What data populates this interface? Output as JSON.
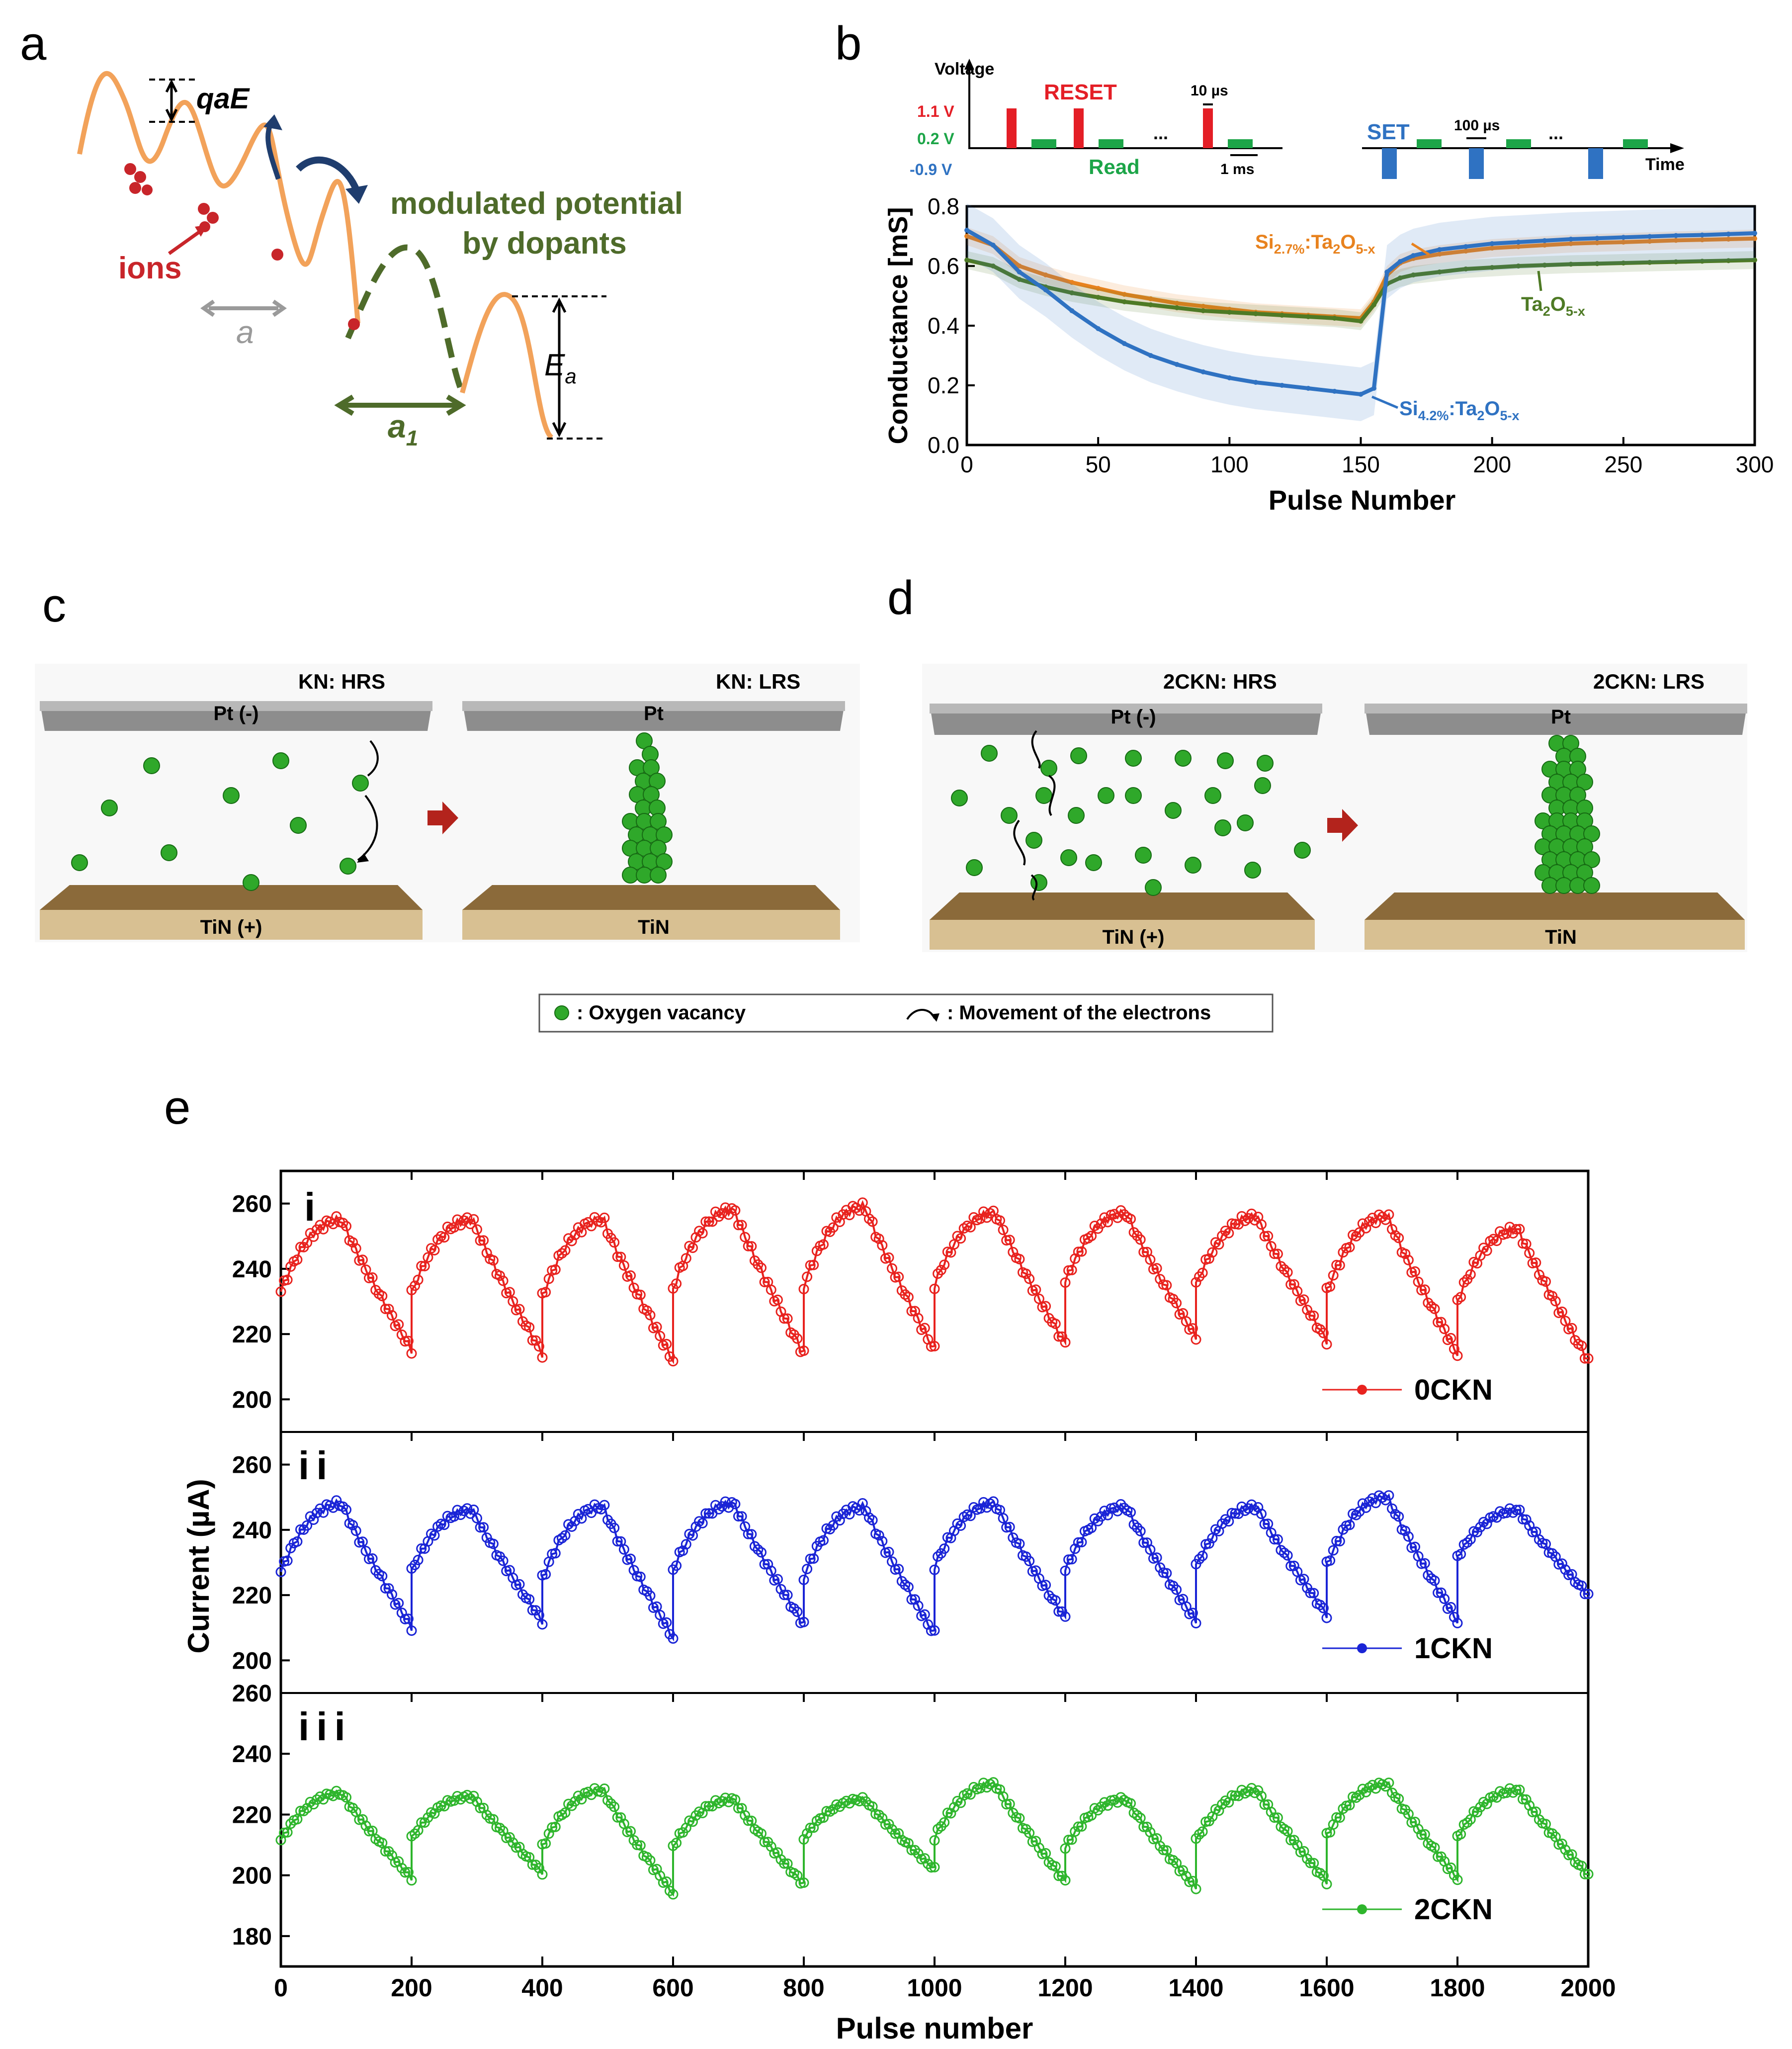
{
  "panel_letters": {
    "a": "a",
    "b": "b",
    "c": "c",
    "d": "d",
    "e": "e"
  },
  "panel_a": {
    "labels": {
      "energy_top": "qaE",
      "ions": "ions",
      "spacing": "a",
      "spacing_dopant": "a",
      "spacing_dopant_sub": "1",
      "barrier": "E",
      "barrier_sub": "a",
      "modulated_line1": "modulated potential",
      "modulated_line2": "by dopants"
    },
    "colors": {
      "potential": "#f2a25a",
      "dopant": "#4e6b2a",
      "ion": "#c8252a",
      "arrow": "#1f3d6e"
    }
  },
  "panel_b": {
    "pulse_scheme": {
      "voltage_label": "Voltage",
      "time_label": "Time",
      "levels": [
        "1.1 V",
        "0.2 V",
        "-0.9 V"
      ],
      "reset_label": "RESET",
      "read_label": "Read",
      "set_label": "SET",
      "reset_width": "10 µs",
      "interval": "1 ms",
      "set_width": "100 µs",
      "ellipsis": "..."
    },
    "legend": [
      {
        "main": "Si",
        "sub": "2.7%",
        "rest": ":Ta",
        "sub2": "2",
        "rest2": "O",
        "sub3": "5-x",
        "color": "#e8821e"
      },
      {
        "main": "Ta",
        "sub": "2",
        "rest": "O",
        "sub2": "5-x",
        "rest2": "",
        "sub3": "",
        "color": "#4e7a25"
      },
      {
        "main": "Si",
        "sub": "4.2%",
        "rest": ":Ta",
        "sub2": "2",
        "rest2": "O",
        "sub3": "5-x",
        "color": "#2f72c2"
      }
    ]
  },
  "panel_c": {
    "hrs_title": "KN: HRS",
    "lrs_title": "KN: LRS",
    "top_electrode_hrs": "Pt (-)",
    "bottom_electrode_hrs": "TiN (+)",
    "top_electrode_lrs": "Pt",
    "bottom_electrode_lrs": "TiN"
  },
  "panel_d": {
    "hrs_title": "2CKN: HRS",
    "lrs_title": "2CKN: LRS",
    "top_electrode_hrs": "Pt (-)",
    "bottom_electrode_hrs": "TiN (+)",
    "top_electrode_lrs": "Pt",
    "bottom_electrode_lrs": "TiN"
  },
  "legend_cd": {
    "vacancy": ": Oxygen vacancy",
    "electron": ": Movement of the electrons"
  },
  "colors": {
    "vacancy": "#2fa82a",
    "electrode_top": "#8d8d8d",
    "electrode_bottom": "#b89a6a",
    "arrow_red": "#b3231c"
  },
  "chart_data": [
    {
      "type": "line",
      "panel": "b",
      "xlabel": "Pulse Number",
      "ylabel": "Conductance [mS]",
      "xlim": [
        0,
        300
      ],
      "ylim": [
        0,
        0.8
      ],
      "xticks": [
        0,
        50,
        100,
        150,
        200,
        250,
        300
      ],
      "yticks": [
        "0.0",
        "0.2",
        "0.4",
        "0.6",
        "0.8"
      ],
      "x": [
        0,
        10,
        20,
        30,
        40,
        50,
        60,
        70,
        80,
        90,
        100,
        110,
        120,
        130,
        140,
        150,
        155,
        160,
        165,
        170,
        180,
        190,
        200,
        210,
        220,
        230,
        240,
        250,
        260,
        270,
        280,
        290,
        300
      ],
      "series": [
        {
          "name": "Si2.7%:Ta2O5-x",
          "color": "#e8821e",
          "values": [
            0.7,
            0.67,
            0.6,
            0.57,
            0.545,
            0.525,
            0.505,
            0.49,
            0.475,
            0.465,
            0.455,
            0.445,
            0.44,
            0.435,
            0.43,
            0.425,
            0.48,
            0.57,
            0.61,
            0.625,
            0.64,
            0.65,
            0.66,
            0.665,
            0.67,
            0.675,
            0.678,
            0.68,
            0.683,
            0.686,
            0.688,
            0.69,
            0.692
          ]
        },
        {
          "name": "Ta2O5-x",
          "color": "#4e7a25",
          "values": [
            0.62,
            0.6,
            0.555,
            0.53,
            0.51,
            0.495,
            0.48,
            0.47,
            0.46,
            0.45,
            0.445,
            0.44,
            0.435,
            0.43,
            0.425,
            0.415,
            0.47,
            0.54,
            0.56,
            0.57,
            0.58,
            0.59,
            0.595,
            0.6,
            0.603,
            0.606,
            0.608,
            0.61,
            0.612,
            0.614,
            0.616,
            0.618,
            0.62
          ]
        },
        {
          "name": "Si4.2%:Ta2O5-x",
          "color": "#2f72c2",
          "values": [
            0.72,
            0.67,
            0.58,
            0.52,
            0.45,
            0.39,
            0.34,
            0.3,
            0.27,
            0.245,
            0.225,
            0.21,
            0.2,
            0.19,
            0.18,
            0.17,
            0.19,
            0.58,
            0.615,
            0.635,
            0.655,
            0.665,
            0.675,
            0.68,
            0.685,
            0.69,
            0.693,
            0.696,
            0.699,
            0.702,
            0.704,
            0.707,
            0.71
          ]
        }
      ],
      "annotations": [
        "Si2.7%:Ta2O5-x",
        "Ta2O5-x",
        "Si4.2%:Ta2O5-x"
      ]
    },
    {
      "type": "line",
      "panel": "e",
      "xlabel": "Pulse number",
      "ylabel": "Current (µA)",
      "xlim": [
        0,
        2000
      ],
      "xticks": [
        0,
        200,
        400,
        600,
        800,
        1000,
        1200,
        1400,
        1600,
        1800,
        2000
      ],
      "cycle_length": 200,
      "subplots": [
        {
          "label": "i",
          "series_name": "0CKN",
          "color": "#e8221e",
          "ylim": [
            190,
            270
          ],
          "yticks": [
            200,
            220,
            240,
            260
          ],
          "cycles": [
            {
              "min": 215,
              "max": 255
            },
            {
              "min": 214,
              "max": 255
            },
            {
              "min": 212,
              "max": 255
            },
            {
              "min": 214,
              "max": 258
            },
            {
              "min": 215,
              "max": 259
            },
            {
              "min": 217,
              "max": 257
            },
            {
              "min": 219,
              "max": 257
            },
            {
              "min": 218,
              "max": 256
            },
            {
              "min": 214,
              "max": 256
            },
            {
              "min": 212,
              "max": 252
            }
          ]
        },
        {
          "label": "ii",
          "series_name": "1CKN",
          "color": "#1a24d6",
          "ylim": [
            190,
            270
          ],
          "yticks": [
            200,
            220,
            240,
            260
          ],
          "cycles": [
            {
              "min": 210,
              "max": 248
            },
            {
              "min": 212,
              "max": 246
            },
            {
              "min": 207,
              "max": 247
            },
            {
              "min": 211,
              "max": 248
            },
            {
              "min": 208,
              "max": 247
            },
            {
              "min": 213,
              "max": 248
            },
            {
              "min": 212,
              "max": 247
            },
            {
              "min": 214,
              "max": 247
            },
            {
              "min": 212,
              "max": 250
            },
            {
              "min": 220,
              "max": 246
            }
          ]
        },
        {
          "label": "iii",
          "series_name": "2CKN",
          "color": "#2eb52c",
          "ylim": [
            170,
            260
          ],
          "yticks": [
            180,
            200,
            220,
            240,
            260
          ],
          "cycles": [
            {
              "min": 199,
              "max": 227
            },
            {
              "min": 201,
              "max": 226
            },
            {
              "min": 194,
              "max": 228
            },
            {
              "min": 197,
              "max": 225
            },
            {
              "min": 202,
              "max": 225
            },
            {
              "min": 198,
              "max": 230
            },
            {
              "min": 196,
              "max": 225
            },
            {
              "min": 198,
              "max": 228
            },
            {
              "min": 199,
              "max": 230
            },
            {
              "min": 200,
              "max": 228
            }
          ]
        }
      ]
    }
  ]
}
